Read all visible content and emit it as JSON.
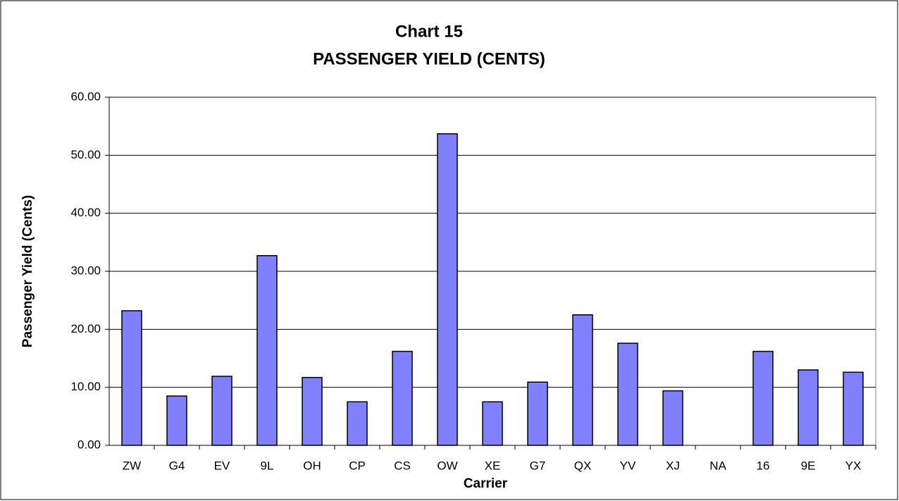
{
  "chart_data": {
    "type": "bar",
    "title": "Chart 15",
    "subtitle": "PASSENGER YIELD (CENTS)",
    "x_label": "Carrier",
    "y_label": "Passenger Yield (Cents)",
    "categories": [
      "ZW",
      "G4",
      "EV",
      "9L",
      "OH",
      "CP",
      "CS",
      "OW",
      "XE",
      "G7",
      "QX",
      "YV",
      "XJ",
      "NA",
      "16",
      "9E",
      "YX"
    ],
    "values": [
      23.2,
      8.5,
      11.9,
      32.7,
      11.7,
      7.5,
      16.2,
      53.7,
      7.5,
      10.9,
      22.5,
      17.6,
      9.4,
      null,
      16.2,
      13.0,
      12.6
    ],
    "color": "#8080ff",
    "ylim": [
      0,
      60
    ],
    "yticks": [
      {
        "value": 0,
        "label": "0.00"
      },
      {
        "value": 10,
        "label": "10.00"
      },
      {
        "value": 20,
        "label": "20.00"
      },
      {
        "value": 30,
        "label": "30.00"
      },
      {
        "value": 40,
        "label": "40.00"
      },
      {
        "value": 50,
        "label": "50.00"
      },
      {
        "value": 60,
        "label": "60.00"
      }
    ],
    "grid": true
  }
}
